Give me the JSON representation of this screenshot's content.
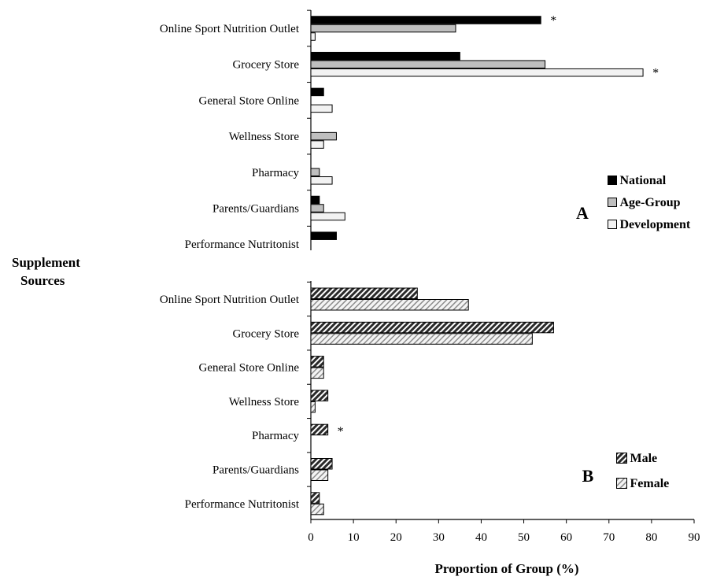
{
  "y_axis_title_lines": [
    "Supplement",
    "Sources"
  ],
  "chart_data": [
    {
      "type": "bar",
      "orientation": "horizontal",
      "panel_label": "A",
      "categories": [
        "Online Sport Nutrition Outlet",
        "Grocery Store",
        "General Store Online",
        "Wellness Store",
        "Pharmacy",
        "Parents/Guardians",
        "Performance Nutritonist"
      ],
      "series": [
        {
          "name": "National",
          "values": [
            54,
            35,
            3,
            0,
            0,
            2,
            6
          ],
          "color": "#000000",
          "pattern": "solid",
          "stars": [
            0
          ]
        },
        {
          "name": "Age-Group",
          "values": [
            34,
            55,
            0,
            6,
            2,
            3,
            0
          ],
          "color": "#bfbfbf",
          "pattern": "solid",
          "stars": []
        },
        {
          "name": "Development",
          "values": [
            1,
            78,
            5,
            3,
            5,
            8,
            0
          ],
          "color": "#f2f2f2",
          "pattern": "solid",
          "stars": [
            1
          ]
        }
      ],
      "annotation": "*",
      "legend_position": "right"
    },
    {
      "type": "bar",
      "orientation": "horizontal",
      "panel_label": "B",
      "categories": [
        "Online Sport Nutrition Outlet",
        "Grocery Store",
        "General Store Online",
        "Wellness Store",
        "Pharmacy",
        "Parents/Guardians",
        "Performance Nutritonist"
      ],
      "series": [
        {
          "name": "Male",
          "values": [
            25,
            57,
            3,
            4,
            4,
            5,
            2
          ],
          "color": "#3a3a3a",
          "pattern": "hatch-dark",
          "stars": [
            4
          ]
        },
        {
          "name": "Female",
          "values": [
            37,
            52,
            3,
            1,
            0,
            4,
            3
          ],
          "color": "#d9d9d9",
          "pattern": "hatch-light",
          "stars": []
        }
      ],
      "annotation": "*",
      "legend_position": "bottom-right"
    }
  ],
  "x_axis": {
    "label": "Proportion of Group (%)",
    "range": [
      0,
      90
    ],
    "ticks": [
      0,
      10,
      20,
      30,
      40,
      50,
      60,
      70,
      80,
      90
    ]
  }
}
